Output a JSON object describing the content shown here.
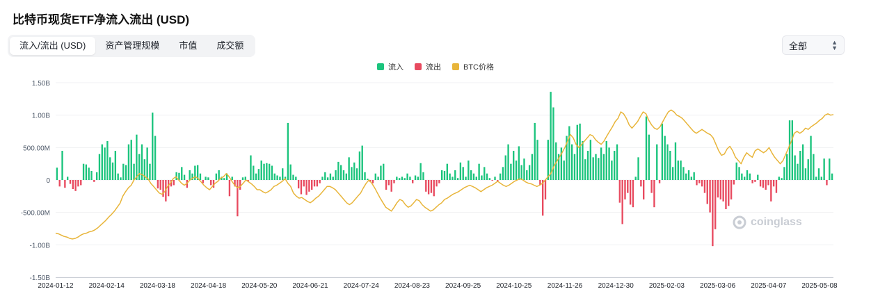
{
  "page": {
    "title": "比特币现货ETF净流入流出 (USD)"
  },
  "tabs": [
    {
      "label": "流入/流出 (USD)",
      "active": true
    },
    {
      "label": "资产管理规模",
      "active": false
    },
    {
      "label": "市值",
      "active": false
    },
    {
      "label": "成交额",
      "active": false
    }
  ],
  "filter": {
    "selected": "全部"
  },
  "legend": [
    {
      "label": "流入",
      "color": "#1bc47d"
    },
    {
      "label": "流出",
      "color": "#e84a5f"
    },
    {
      "label": "BTC价格",
      "color": "#e8b53a"
    }
  ],
  "watermark": "coinglass",
  "chart_data": {
    "type": "bar",
    "ylim": [
      -1.5,
      1.5
    ],
    "y_unit": "B USD",
    "y_ticks": [
      1.5,
      1.0,
      0.5,
      0,
      -0.5,
      -1.0,
      -1.5
    ],
    "y_tick_labels": [
      "1.50B",
      "1.00B",
      "500.00M",
      "0",
      "-500.00M",
      "-1.00B",
      "-1.50B"
    ],
    "x_tick_labels": [
      "2024-01-12",
      "2024-02-14",
      "2024-03-18",
      "2024-04-18",
      "2024-05-20",
      "2024-06-21",
      "2024-07-24",
      "2024-08-23",
      "2024-09-25",
      "2024-10-25",
      "2024-11-26",
      "2024-12-30",
      "2025-02-03",
      "2025-03-06",
      "2025-04-07",
      "2025-05-08"
    ],
    "flows": [
      0.19,
      -0.1,
      0.45,
      -0.12,
      0.05,
      -0.06,
      -0.14,
      -0.17,
      -0.1,
      -0.08,
      0.25,
      0.24,
      0.19,
      0.14,
      -0.03,
      0.12,
      0.4,
      0.55,
      0.5,
      0.6,
      0.35,
      0.27,
      0.45,
      0.1,
      0.04,
      0.25,
      0.23,
      0.55,
      0.62,
      0.25,
      0.7,
      0.4,
      0.55,
      0.32,
      0.5,
      0.25,
      1.04,
      0.68,
      -0.13,
      -0.15,
      -0.26,
      -0.33,
      -0.25,
      -0.1,
      -0.08,
      0.12,
      0.11,
      0.2,
      0.08,
      -0.12,
      0.15,
      0.1,
      0.22,
      0.23,
      0.1,
      -0.05,
      0.05,
      0.04,
      -0.08,
      -0.12,
      0.1,
      0.15,
      0.05,
      0.03,
      0.1,
      -0.25,
      0.05,
      -0.1,
      -0.56,
      -0.15,
      0.04,
      0.05,
      -0.02,
      0.38,
      0.22,
      0.1,
      0.17,
      0.3,
      0.25,
      0.26,
      0.25,
      0.22,
      0.1,
      0.07,
      0.05,
      0.18,
      0.05,
      0.88,
      0.24,
      0.08,
      0.05,
      -0.13,
      -0.22,
      -0.1,
      -0.23,
      -0.18,
      -0.15,
      -0.1,
      -0.1,
      -0.05,
      0.05,
      0.12,
      0.04,
      0.1,
      0.05,
      0.15,
      0.28,
      0.23,
      0.15,
      0.1,
      0.35,
      0.2,
      0.27,
      0.18,
      0.44,
      0.53,
      0.12,
      0.02,
      -0.03,
      -0.05,
      0.1,
      0.05,
      0.22,
      0.25,
      -0.15,
      -0.08,
      -0.18,
      -0.05,
      0.05,
      0.03,
      0.05,
      0.03,
      0.1,
      0.05,
      -0.05,
      0.07,
      0.05,
      0.26,
      0.12,
      -0.18,
      -0.22,
      -0.2,
      -0.25,
      -0.1,
      -0.05,
      0.15,
      0.14,
      0.25,
      0.1,
      0.05,
      0.15,
      0.03,
      0.27,
      0.2,
      0.05,
      0.3,
      0.15,
      0.1,
      0.05,
      0.25,
      0.07,
      0.2,
      0.1,
      0.03,
      -0.01,
      0.05,
      -0.03,
      0.1,
      0.2,
      0.38,
      0.55,
      0.25,
      0.45,
      0.3,
      0.52,
      0.23,
      0.33,
      0.15,
      0.23,
      0.4,
      0.88,
      0.62,
      -0.08,
      -0.55,
      -0.3,
      0.62,
      1.36,
      1.12,
      0.58,
      0.4,
      0.5,
      0.3,
      0.68,
      0.83,
      0.55,
      0.4,
      0.85,
      0.87,
      0.6,
      0.32,
      0.45,
      0.62,
      0.35,
      0.4,
      0.34,
      0.5,
      0.4,
      0.6,
      0.5,
      0.3,
      0.45,
      0.55,
      -0.35,
      -0.68,
      -0.3,
      -0.2,
      -0.38,
      -0.42,
      0.05,
      0.35,
      -0.1,
      -0.3,
      0.98,
      0.7,
      -0.2,
      -0.42,
      0.55,
      -0.05,
      0.87,
      0.68,
      0.55,
      0.45,
      0.2,
      0.58,
      0.3,
      0.3,
      0.2,
      0.1,
      0.15,
      0.05,
      0.12,
      -0.08,
      -0.05,
      -0.1,
      -0.2,
      -0.37,
      -0.5,
      -1.02,
      -0.76,
      -0.27,
      -0.3,
      -0.33,
      -0.45,
      -0.4,
      -0.3,
      -0.07,
      0.27,
      0.2,
      0.1,
      0.05,
      0.15,
      0.1,
      -0.05,
      -0.03,
      0.08,
      -0.1,
      -0.12,
      -0.15,
      -0.08,
      -0.33,
      -0.1,
      -0.2,
      0.05,
      0.03,
      0.2,
      0.4,
      0.92,
      0.92,
      0.38,
      0.25,
      0.45,
      0.55,
      0.18,
      0.32,
      0.68,
      0.4,
      0.05,
      0.18,
      0.05,
      0.33,
      -0.08,
      0.33,
      0.1
    ],
    "btc_price_scaled": [
      -0.82,
      -0.83,
      -0.85,
      -0.87,
      -0.88,
      -0.9,
      -0.91,
      -0.9,
      -0.88,
      -0.85,
      -0.83,
      -0.82,
      -0.8,
      -0.79,
      -0.77,
      -0.74,
      -0.7,
      -0.66,
      -0.62,
      -0.57,
      -0.53,
      -0.48,
      -0.42,
      -0.36,
      -0.25,
      -0.18,
      -0.12,
      -0.08,
      0.0,
      0.05,
      0.1,
      0.08,
      0.05,
      0.02,
      -0.05,
      -0.1,
      -0.15,
      -0.2,
      -0.22,
      -0.18,
      -0.1,
      -0.05,
      0.02,
      0.05,
      0.0,
      -0.05,
      -0.08,
      -0.05,
      0.0,
      0.03,
      0.05,
      0.02,
      -0.03,
      -0.08,
      -0.12,
      -0.15,
      -0.1,
      -0.05,
      -0.02,
      0.03,
      0.05,
      0.1,
      0.05,
      -0.02,
      -0.08,
      -0.12,
      -0.1,
      -0.05,
      0.0,
      -0.03,
      -0.06,
      -0.1,
      -0.15,
      -0.15,
      -0.18,
      -0.2,
      -0.18,
      -0.15,
      -0.1,
      -0.08,
      -0.05,
      -0.02,
      0.02,
      -0.05,
      -0.1,
      -0.2,
      -0.25,
      -0.28,
      -0.27,
      -0.3,
      -0.33,
      -0.35,
      -0.32,
      -0.28,
      -0.25,
      -0.2,
      -0.15,
      -0.1,
      -0.1,
      -0.12,
      -0.15,
      -0.2,
      -0.25,
      -0.3,
      -0.35,
      -0.38,
      -0.35,
      -0.3,
      -0.25,
      -0.2,
      -0.12,
      -0.05,
      0.0,
      -0.05,
      -0.12,
      -0.2,
      -0.28,
      -0.35,
      -0.42,
      -0.45,
      -0.48,
      -0.42,
      -0.35,
      -0.3,
      -0.32,
      -0.38,
      -0.42,
      -0.4,
      -0.35,
      -0.3,
      -0.32,
      -0.38,
      -0.42,
      -0.45,
      -0.48,
      -0.46,
      -0.42,
      -0.38,
      -0.35,
      -0.3,
      -0.28,
      -0.25,
      -0.22,
      -0.2,
      -0.18,
      -0.15,
      -0.12,
      -0.1,
      -0.08,
      -0.1,
      -0.12,
      -0.15,
      -0.18,
      -0.15,
      -0.12,
      -0.1,
      -0.08,
      -0.05,
      -0.02,
      -0.05,
      -0.08,
      -0.1,
      -0.08,
      -0.05,
      -0.02,
      0.0,
      0.02,
      0.0,
      -0.03,
      -0.05,
      -0.06,
      -0.08,
      -0.1,
      -0.08,
      -0.05,
      0.0,
      0.05,
      0.1,
      0.2,
      0.28,
      0.35,
      0.42,
      0.5,
      0.6,
      0.7,
      0.65,
      0.55,
      0.5,
      0.55,
      0.6,
      0.65,
      0.7,
      0.68,
      0.62,
      0.58,
      0.55,
      0.6,
      0.68,
      0.75,
      0.82,
      0.9,
      0.95,
      1.05,
      1.02,
      0.95,
      0.85,
      0.8,
      0.85,
      0.9,
      0.98,
      1.05,
      1.02,
      0.92,
      0.85,
      0.8,
      0.78,
      0.82,
      0.9,
      0.98,
      1.05,
      1.08,
      1.05,
      1.0,
      0.98,
      0.95,
      0.9,
      0.85,
      0.8,
      0.75,
      0.72,
      0.75,
      0.78,
      0.75,
      0.72,
      0.7,
      0.65,
      0.55,
      0.45,
      0.38,
      0.4,
      0.48,
      0.52,
      0.45,
      0.35,
      0.3,
      0.25,
      0.35,
      0.42,
      0.38,
      0.35,
      0.45,
      0.48,
      0.45,
      0.42,
      0.45,
      0.5,
      0.42,
      0.35,
      0.3,
      0.25,
      0.3,
      0.4,
      0.5,
      0.6,
      0.72,
      0.75,
      0.72,
      0.75,
      0.8,
      0.78,
      0.82,
      0.85,
      0.88,
      0.92,
      0.95,
      1.0,
      1.02,
      1.0,
      1.01
    ]
  }
}
